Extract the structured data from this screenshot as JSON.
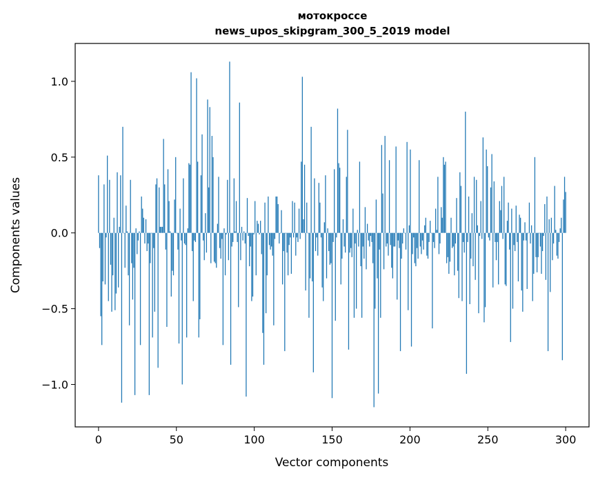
{
  "chart_data": {
    "type": "bar",
    "title": "мотокроссе",
    "subtitle": "news_upos_skipgram_300_5_2019 model",
    "xlabel": "Vector components",
    "ylabel": "Components values",
    "xlim": [
      -15,
      315
    ],
    "ylim": [
      -1.28,
      1.25
    ],
    "xticks": [
      0,
      50,
      100,
      150,
      200,
      250,
      300
    ],
    "xtick_labels": [
      "0",
      "50",
      "100",
      "150",
      "200",
      "250",
      "300"
    ],
    "yticks": [
      -1.0,
      -0.5,
      0.0,
      0.5,
      1.0
    ],
    "ytick_labels": [
      "−1.0",
      "−0.5",
      "0.0",
      "0.5",
      "1.0"
    ],
    "grid": false,
    "bar_color": "#1f77b4",
    "values": [
      0.38,
      -0.1,
      -0.55,
      -0.74,
      -0.32,
      0.32,
      -0.34,
      -0.03,
      0.51,
      -0.45,
      0.35,
      -0.21,
      -0.52,
      -0.28,
      0.1,
      -0.51,
      -0.4,
      0.4,
      -0.36,
      0.04,
      0.38,
      -1.12,
      0.7,
      0.0,
      -0.23,
      0.18,
      0.01,
      -0.28,
      -0.61,
      0.35,
      -0.2,
      -0.44,
      -0.23,
      -1.07,
      0.03,
      -0.14,
      -0.05,
      0.01,
      -0.74,
      0.24,
      0.16,
      0.1,
      -0.07,
      0.09,
      -0.12,
      -0.07,
      -1.07,
      -0.2,
      0.0,
      -0.69,
      -0.1,
      -0.52,
      0.32,
      0.36,
      -0.89,
      0.3,
      0.04,
      0.04,
      0.04,
      0.62,
      0.32,
      -0.11,
      -0.62,
      0.42,
      0.21,
      0.01,
      -0.42,
      -0.25,
      -0.28,
      0.22,
      0.5,
      0.0,
      -0.11,
      -0.73,
      0.16,
      -0.05,
      -1.0,
      0.36,
      -0.07,
      -0.08,
      -0.69,
      0.03,
      0.46,
      0.45,
      1.06,
      -0.12,
      -0.45,
      -0.05,
      -0.06,
      1.02,
      0.47,
      -0.69,
      -0.57,
      0.38,
      0.65,
      -0.05,
      -0.18,
      0.13,
      -0.13,
      0.88,
      0.3,
      0.83,
      -0.2,
      0.64,
      0.5,
      -0.19,
      -0.2,
      -0.23,
      0.06,
      0.37,
      -0.1,
      -0.17,
      -0.04,
      -0.74,
      0.03,
      -0.28,
      -0.01,
      0.35,
      -0.18,
      1.13,
      -0.87,
      -0.09,
      -0.06,
      0.36,
      0.01,
      0.21,
      -0.06,
      -0.49,
      0.86,
      -0.18,
      0.04,
      -0.05,
      0.01,
      -0.07,
      -1.08,
      0.23,
      -0.02,
      -0.22,
      -0.09,
      -0.45,
      -0.42,
      -0.01,
      0.21,
      -0.28,
      0.08,
      0.06,
      -0.01,
      0.08,
      -0.14,
      -0.66,
      -0.87,
      0.2,
      -0.53,
      -0.28,
      0.24,
      -0.08,
      -0.11,
      -0.09,
      -0.15,
      -0.61,
      -0.04,
      0.24,
      0.24,
      0.19,
      -0.07,
      0.0,
      0.15,
      -0.34,
      -0.12,
      -0.78,
      0.0,
      -0.13,
      -0.28,
      -0.08,
      -0.03,
      -0.27,
      0.21,
      -0.03,
      0.2,
      -0.15,
      -0.03,
      -0.06,
      0.16,
      -0.04,
      0.47,
      1.03,
      0.09,
      0.45,
      -0.38,
      0.2,
      0.0,
      -0.56,
      -0.3,
      0.7,
      -0.32,
      -0.92,
      0.36,
      -0.12,
      -0.03,
      -0.15,
      0.33,
      0.2,
      -0.03,
      -0.36,
      -0.45,
      0.07,
      0.38,
      -0.3,
      0.03,
      -0.12,
      -0.21,
      -0.2,
      -1.09,
      -0.06,
      0.42,
      -0.58,
      -0.03,
      0.82,
      0.46,
      0.43,
      -0.34,
      -0.17,
      0.09,
      -0.09,
      -0.13,
      0.37,
      0.68,
      -0.77,
      -0.13,
      -0.1,
      -0.16,
      0.16,
      -0.56,
      -0.07,
      -0.5,
      0.02,
      -0.09,
      0.47,
      -0.22,
      -0.56,
      -0.09,
      -0.17,
      0.17,
      -0.24,
      0.06,
      -0.05,
      -0.09,
      -0.02,
      -0.06,
      -0.2,
      -1.15,
      -0.5,
      0.22,
      -0.3,
      -1.06,
      -0.11,
      -0.56,
      0.58,
      0.26,
      -0.24,
      0.64,
      -0.09,
      -0.07,
      -0.15,
      0.48,
      -0.08,
      -0.23,
      -0.3,
      -0.09,
      -0.09,
      0.57,
      -0.44,
      -0.05,
      -0.1,
      -0.78,
      -0.17,
      -0.07,
      0.03,
      0.0,
      -0.11,
      0.6,
      -0.51,
      0.05,
      0.55,
      -0.75,
      -0.14,
      -0.03,
      -0.2,
      -0.22,
      -0.1,
      -0.17,
      0.48,
      -0.09,
      -0.14,
      -0.05,
      -0.11,
      0.05,
      0.1,
      -0.15,
      -0.17,
      -0.06,
      0.08,
      0.0,
      -0.63,
      -0.06,
      -0.1,
      0.16,
      0.02,
      0.37,
      -0.14,
      -0.07,
      0.17,
      0.1,
      0.5,
      0.45,
      0.47,
      -0.2,
      -0.16,
      -0.27,
      -0.19,
      0.1,
      -0.1,
      -0.09,
      -0.28,
      -0.07,
      0.23,
      -0.25,
      -0.43,
      0.4,
      0.31,
      -0.45,
      -0.06,
      -0.13,
      0.8,
      -0.93,
      -0.06,
      0.24,
      -0.47,
      -0.17,
      0.13,
      -0.22,
      0.37,
      -0.31,
      0.35,
      0.05,
      -0.53,
      -0.02,
      0.21,
      -0.04,
      0.63,
      -0.59,
      -0.49,
      0.55,
      0.44,
      -0.03,
      -0.05,
      0.3,
      0.52,
      -0.36,
      0.34,
      -0.06,
      -0.18,
      -0.06,
      -0.34,
      0.21,
      0.15,
      0.31,
      -0.04,
      0.37,
      -0.34,
      -0.35,
      0.08,
      0.2,
      -0.11,
      -0.72,
      0.16,
      -0.5,
      -0.08,
      -0.12,
      0.18,
      -0.06,
      -0.32,
      0.12,
      0.1,
      -0.38,
      -0.52,
      -0.05,
      0.07,
      -0.05,
      -0.37,
      0.0,
      0.2,
      -0.07,
      0.05,
      -0.45,
      -0.27,
      0.5,
      -0.16,
      -0.26,
      -0.16,
      0.0,
      -0.09,
      -0.27,
      -0.12,
      -0.02,
      0.19,
      -0.31,
      0.24,
      -0.78,
      0.09,
      -0.39,
      0.1,
      -0.18,
      -0.07,
      0.31,
      0.02,
      -0.15,
      -0.17,
      -0.06,
      0.03,
      0.1,
      -0.84,
      0.22,
      0.37,
      0.27
    ]
  }
}
